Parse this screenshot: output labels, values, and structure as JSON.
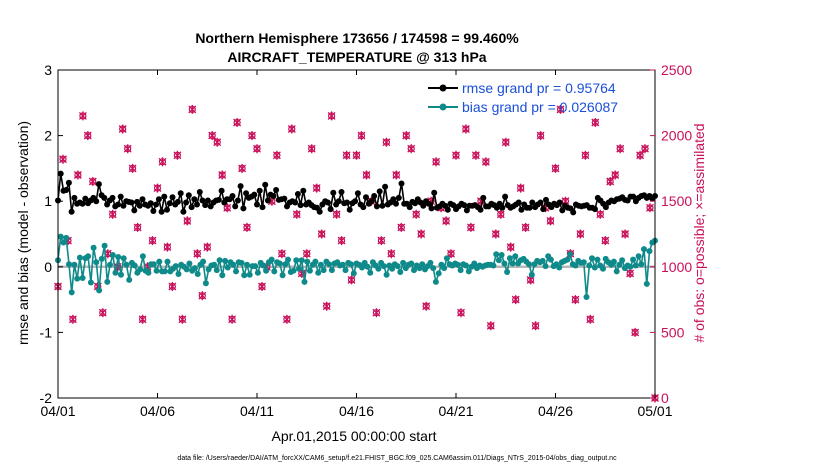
{
  "chart_data": {
    "type": "line",
    "title": "Northern Hemisphere 173656 / 174598 = 99.460%",
    "subtitle": "AIRCRAFT_TEMPERATURE @ 313 hPa",
    "xlabel": "Apr.01,2015 00:00:00 start",
    "ylabel": "rmse and bias (model - observation)",
    "ylabel_right": "# of obs: o=possible; ×=assimilated",
    "ylim": [
      -2,
      3
    ],
    "ylim_right": [
      0,
      2500
    ],
    "xlim": [
      0,
      30
    ],
    "x_ticks": [
      0,
      5,
      10,
      15,
      20,
      25,
      30
    ],
    "x_tick_labels": [
      "04/01",
      "04/06",
      "04/11",
      "04/16",
      "04/21",
      "04/26",
      "05/01"
    ],
    "y_tick_labels": [
      "-2",
      "-1",
      "0",
      "1",
      "2",
      "3"
    ],
    "y_right_tick_labels": [
      "0",
      "500",
      "1000",
      "1500",
      "2000",
      "2500"
    ],
    "legend_position": "top-right",
    "footnote": "data file: /Users/raeder/DAI/ATM_forcXX/CAM6_setup/f.e21.FHIST_BGC.f09_025.CAM6assim.011/Diags_NTrS_2015-04/obs_diag_output.nc",
    "colors": {
      "rmse": "#000000",
      "bias": "#0f8a8a",
      "obs": "#c8105a",
      "zero": "#b8b8b8"
    },
    "series": [
      {
        "name": "rmse grand pr = 0.95764",
        "axis": "left",
        "values": [
          1.01,
          1.42,
          1.16,
          1.17,
          1.28,
          0.84,
          1.05,
          0.96,
          0.98,
          0.96,
          1.04,
          0.97,
          1.01,
          1.05,
          1.0,
          1.26,
          1.09,
          1.05,
          0.95,
          1.01,
          1.05,
          0.92,
          0.95,
          1.07,
          0.93,
          1.0,
          0.99,
          0.98,
          0.86,
          0.99,
          0.93,
          1.03,
          0.95,
          0.93,
          0.97,
          0.85,
          0.95,
          1.03,
          0.84,
          1.07,
          0.87,
          0.97,
          1.06,
          0.95,
          0.99,
          1.12,
          0.84,
          0.98,
          1.09,
          0.91,
          1.03,
          0.95,
          1.14,
          1.01,
          0.94,
          1.01,
          0.92,
          0.98,
          1.01,
          1.02,
          1.16,
          0.98,
          1.03,
          1.03,
          1.08,
          0.92,
          1.01,
          1.23,
          0.89,
          1.12,
          1.05,
          1.07,
          1.1,
          0.95,
          1.16,
          0.91,
          1.25,
          1.01,
          1.1,
          1.08,
          1.17,
          1.02,
          1.03,
          1.04,
          0.92,
          0.98,
          1.0,
          0.98,
          1.11,
          0.94,
          1.16,
          0.95,
          0.98,
          0.94,
          0.91,
          0.9,
          0.84,
          0.95,
          1.0,
          0.98,
          0.88,
          1.13,
          0.95,
          1.0,
          1.14,
          0.97,
          0.98,
          0.87,
          0.97,
          1.0,
          1.12,
          0.95,
          0.91,
          1.06,
          0.96,
          1.0,
          1.08,
          0.92,
          1.15,
          0.93,
          1.22,
          0.95,
          0.98,
          1.03,
          0.96,
          1.05,
          1.27,
          0.96,
          0.96,
          0.91,
          0.99,
          0.97,
          1.03,
          0.98,
          0.93,
          1.0,
          0.96,
          0.89,
          1.13,
          0.9,
          0.92,
          0.96,
          0.93,
          0.87,
          0.96,
          0.94,
          0.88,
          0.92,
          0.96,
          0.94,
          0.86,
          0.93,
          0.93,
          0.94,
          0.91,
          0.87,
          1.05,
          0.92,
          0.92,
          0.96,
          0.94,
          0.9,
          0.96,
          0.9,
          1.07,
          0.94,
          0.9,
          0.92,
          0.95,
          0.98,
          0.87,
          0.95,
          0.9,
          0.9,
          0.98,
          0.91,
          0.95,
          0.98,
          0.88,
          1.02,
          0.95,
          0.91,
          0.96,
          0.94,
          0.98,
          0.86,
          0.93,
          0.9,
          0.89,
          0.83,
          0.95,
          0.93,
          0.92,
          0.93,
          0.94,
          0.9,
          0.9,
          0.88,
          1.05,
          1.01,
          0.96,
          0.91,
          0.98,
          1.01,
          1.0,
          1.03,
          1.04,
          1.06,
          1.02,
          1.01,
          1.07,
          1.07,
          1.0,
          1.05,
          1.08,
          1.09,
          1.05,
          1.08,
          1.04,
          1.08
        ]
      },
      {
        "name": "bias grand pr = 0.026087",
        "axis": "left",
        "values": [
          0.1,
          0.46,
          0.37,
          0.44,
          0.04,
          -0.39,
          0.03,
          -0.18,
          0.14,
          -0.17,
          0.13,
          0.16,
          -0.24,
          0.29,
          0.07,
          -0.36,
          0.12,
          0.32,
          -0.23,
          0.03,
          0.18,
          -0.09,
          0.15,
          -0.12,
          0.13,
          0.03,
          -0.2,
          0.06,
          0.02,
          -0.09,
          -0.04,
          0.16,
          -0.06,
          -0.09,
          0.04,
          0.04,
          -0.06,
          0.08,
          -0.07,
          -0.07,
          0.08,
          -0.07,
          -0.03,
          0.01,
          -0.11,
          0.03,
          0.0,
          -0.04,
          0.05,
          -0.06,
          -0.02,
          -0.11,
          0.03,
          0.08,
          -0.25,
          -0.04,
          0.02,
          0.03,
          -0.05,
          0.1,
          -0.13,
          0.09,
          -0.01,
          0.07,
          0.03,
          -0.07,
          0.07,
          0.06,
          -0.13,
          0.03,
          -0.12,
          0.01,
          0.01,
          -0.09,
          0.06,
          0.02,
          -0.06,
          0.07,
          0.11,
          -0.07,
          0.07,
          0.05,
          -0.13,
          0.04,
          0.11,
          -0.08,
          -0.06,
          0.1,
          -0.03,
          0.1,
          -0.23,
          0.08,
          -0.06,
          0.03,
          0.08,
          -0.09,
          0.03,
          -0.05,
          0.08,
          0.04,
          -0.05,
          0.05,
          0.07,
          0.02,
          0.03,
          -0.05,
          0.06,
          0.04,
          -0.1,
          0.05,
          0.03,
          -0.01,
          0.06,
          0.0,
          -0.09,
          0.07,
          0.02,
          -0.03,
          0.06,
          0.01,
          -0.12,
          0.02,
          -0.03,
          0.04,
          0.01,
          -0.08,
          0.06,
          -0.02,
          0.03,
          0.05,
          -0.05,
          0.02,
          -0.02,
          0.04,
          -0.04,
          0.01,
          0.06,
          -0.02,
          -0.23,
          -0.1,
          0.03,
          -0.02,
          0.13,
          0.04,
          0.02,
          0.05,
          0.03,
          -0.05,
          0.04,
          0.02,
          -0.07,
          0.0,
          0.05,
          -0.02,
          0.02,
          0.0,
          0.02,
          0.03,
          0.03,
          0.02,
          0.19,
          0.1,
          0.18,
          0.05,
          -0.08,
          0.13,
          0.05,
          0.16,
          0.05,
          0.1,
          0.12,
          0.08,
          0.04,
          -0.12,
          0.04,
          0.09,
          0.07,
          0.09,
          0.01,
          0.16,
          0.11,
          0.01,
          0.04,
          -0.01,
          0.07,
          0.09,
          0.11,
          0.19,
          0.04,
          0.02,
          0.09,
          0.06,
          0.07,
          -0.46,
          0.02,
          0.13,
          -0.01,
          0.11,
          0.02,
          -0.03,
          0.12,
          0.07,
          0.03,
          0.08,
          -0.07,
          0.03,
          0.1,
          -0.02,
          0.02,
          0.0,
          0.11,
          0.02,
          0.16,
          0.04,
          0.27,
          -0.26,
          0.24,
          0.37,
          0.4
        ]
      },
      {
        "name": "# of obs",
        "axis": "right",
        "type": "scatter",
        "x": [
          0.0,
          0.25,
          0.5,
          0.75,
          1.0,
          1.25,
          1.5,
          1.75,
          2.0,
          2.25,
          2.5,
          2.75,
          3.0,
          3.25,
          3.5,
          3.75,
          4.0,
          4.25,
          4.5,
          4.75,
          5.0,
          5.25,
          5.5,
          5.75,
          6.0,
          6.25,
          6.5,
          6.75,
          7.0,
          7.25,
          7.5,
          7.75,
          8.0,
          8.25,
          8.5,
          8.75,
          9.0,
          9.25,
          9.5,
          9.75,
          10.0,
          10.25,
          10.5,
          10.75,
          11.0,
          11.25,
          11.5,
          11.75,
          12.0,
          12.25,
          12.5,
          12.75,
          13.0,
          13.25,
          13.5,
          13.75,
          14.0,
          14.25,
          14.5,
          14.75,
          15.0,
          15.25,
          15.5,
          15.75,
          16.0,
          16.25,
          16.5,
          16.75,
          17.0,
          17.25,
          17.5,
          17.75,
          18.0,
          18.25,
          18.5,
          18.75,
          19.0,
          19.25,
          19.5,
          19.75,
          20.0,
          20.25,
          20.5,
          20.75,
          21.0,
          21.25,
          21.5,
          21.75,
          22.0,
          22.25,
          22.5,
          22.75,
          23.0,
          23.25,
          23.5,
          23.75,
          24.0,
          24.25,
          24.5,
          24.75,
          25.0,
          25.25,
          25.5,
          25.75,
          26.0,
          26.25,
          26.5,
          26.75,
          27.0,
          27.25,
          27.5,
          27.75,
          28.0,
          28.25,
          28.5,
          28.75,
          29.0,
          29.25,
          29.5,
          29.75,
          30.0
        ],
        "values": [
          850,
          1820,
          1200,
          600,
          1700,
          2150,
          2000,
          1650,
          850,
          650,
          1100,
          1400,
          1000,
          2050,
          1900,
          1750,
          1300,
          600,
          1000,
          1200,
          1600,
          1800,
          1150,
          850,
          1850,
          600,
          1350,
          2200,
          1100,
          780,
          1150,
          2000,
          1950,
          1700,
          1450,
          600,
          2100,
          1750,
          1300,
          2000,
          1900,
          850,
          1000,
          1500,
          1850,
          1100,
          600,
          2050,
          1400,
          950,
          1100,
          1900,
          1600,
          1250,
          700,
          2150,
          1400,
          1200,
          1850,
          900,
          1850,
          2000,
          1700,
          1500,
          650,
          1200,
          1950,
          1100,
          1700,
          1300,
          2000,
          1900,
          1400,
          1250,
          700,
          1500,
          1800,
          1450,
          1350,
          1100,
          1850,
          650,
          2050,
          1300,
          1850,
          1500,
          1800,
          550,
          1250,
          1400,
          1950,
          1150,
          750,
          1600,
          1300,
          900,
          550,
          2000,
          1450,
          1350,
          1750,
          2200,
          1500,
          1100,
          750,
          1250,
          1850,
          600,
          2100,
          1400,
          1200,
          1650,
          1700,
          1900,
          1250,
          950,
          500,
          1850,
          1900,
          1450,
          0
        ]
      }
    ]
  }
}
